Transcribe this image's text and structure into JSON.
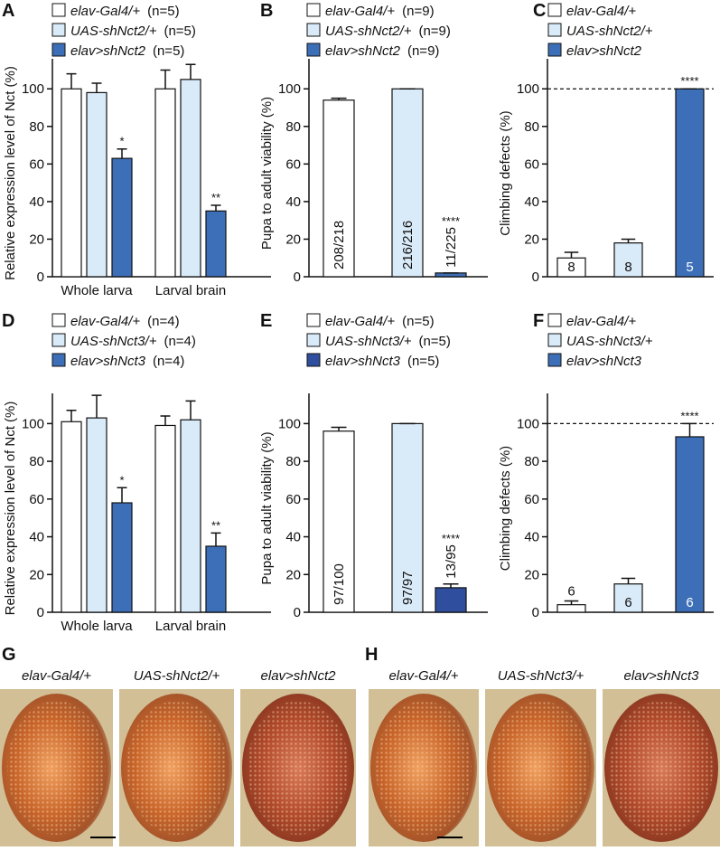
{
  "chart_data": [
    {
      "type": "bar",
      "panel": "A",
      "ylabel": "Relative expression level of Nct (%)",
      "categories": [
        "Whole larva",
        "Larval brain"
      ],
      "series": [
        {
          "name": "elav-Gal4/+",
          "n_label": "(n=5)",
          "color": "#ffffff",
          "values": [
            100,
            100
          ],
          "errors": [
            8,
            10
          ]
        },
        {
          "name": "UAS-shNct2/+",
          "n_label": "(n=5)",
          "color": "#d9eaf8",
          "values": [
            98,
            105
          ],
          "errors": [
            5,
            8
          ]
        },
        {
          "name": "elav>shNct2",
          "n_label": "(n=5)",
          "color": "#3d6fb8",
          "values": [
            63,
            35
          ],
          "errors": [
            5,
            3
          ],
          "significance": [
            "*",
            "**"
          ]
        }
      ],
      "ylim": [
        0,
        116
      ],
      "yticks": [
        0,
        20,
        40,
        60,
        80,
        100
      ]
    },
    {
      "type": "bar",
      "panel": "B",
      "ylabel": "Pupa to adult viability (%)",
      "categories": [
        null
      ],
      "series": [
        {
          "name": "elav-Gal4/+",
          "n_label": "(n=9)",
          "color": "#ffffff",
          "values": [
            94
          ],
          "errors": [
            1
          ],
          "bar_labels": [
            "208/218"
          ]
        },
        {
          "name": "UAS-shNct2/+",
          "n_label": "(n=9)",
          "color": "#d9eaf8",
          "values": [
            100
          ],
          "errors": [
            0
          ],
          "bar_labels": [
            "216/216"
          ]
        },
        {
          "name": "elav>shNct2",
          "n_label": "(n=9)",
          "color": "#3d6fb8",
          "values": [
            2
          ],
          "errors": [
            0
          ],
          "bar_labels": [
            "11/225"
          ],
          "significance": [
            "****"
          ]
        }
      ],
      "ylim": [
        0,
        116
      ],
      "yticks": [
        0,
        20,
        40,
        60,
        80,
        100
      ]
    },
    {
      "type": "bar",
      "panel": "C",
      "ylabel": "Climbing defects (%)",
      "categories": [
        null
      ],
      "series": [
        {
          "name": "elav-Gal4/+",
          "color": "#ffffff",
          "values": [
            10
          ],
          "errors": [
            3
          ],
          "bar_labels": [
            "8"
          ]
        },
        {
          "name": "UAS-shNct2/+",
          "color": "#d9eaf8",
          "values": [
            18
          ],
          "errors": [
            2
          ],
          "bar_labels": [
            "8"
          ]
        },
        {
          "name": "elav>shNct2",
          "color": "#3d6fb8",
          "values": [
            100
          ],
          "errors": [
            0
          ],
          "bar_labels": [
            "5"
          ],
          "significance": [
            "****"
          ]
        }
      ],
      "ylim": [
        0,
        116
      ],
      "yticks": [
        0,
        20,
        40,
        60,
        80,
        100
      ],
      "reference_line": 100
    },
    {
      "type": "bar",
      "panel": "D",
      "ylabel": "Relative expression level of Nct (%)",
      "categories": [
        "Whole larva",
        "Larval brain"
      ],
      "series": [
        {
          "name": "elav-Gal4/+",
          "n_label": "(n=4)",
          "color": "#ffffff",
          "values": [
            101,
            99
          ],
          "errors": [
            6,
            5
          ]
        },
        {
          "name": "UAS-shNct3/+",
          "n_label": "(n=4)",
          "color": "#d9eaf8",
          "values": [
            103,
            102
          ],
          "errors": [
            12,
            10
          ]
        },
        {
          "name": "elav>shNct3",
          "n_label": "(n=4)",
          "color": "#3d6fb8",
          "values": [
            58,
            35
          ],
          "errors": [
            8,
            7
          ],
          "significance": [
            "*",
            "**"
          ]
        }
      ],
      "ylim": [
        0,
        116
      ],
      "yticks": [
        0,
        20,
        40,
        60,
        80,
        100
      ]
    },
    {
      "type": "bar",
      "panel": "E",
      "ylabel": "Pupa to adult viability (%)",
      "categories": [
        null
      ],
      "series": [
        {
          "name": "elav-Gal4/+",
          "n_label": "(n=5)",
          "color": "#ffffff",
          "values": [
            96
          ],
          "errors": [
            2
          ],
          "bar_labels": [
            "97/100"
          ]
        },
        {
          "name": "UAS-shNct3/+",
          "n_label": "(n=5)",
          "color": "#d9eaf8",
          "values": [
            100
          ],
          "errors": [
            0
          ],
          "bar_labels": [
            "97/97"
          ]
        },
        {
          "name": "elav>shNct3",
          "n_label": "(n=5)",
          "color": "#2f4f9e",
          "values": [
            13
          ],
          "errors": [
            2
          ],
          "bar_labels": [
            "13/95"
          ],
          "significance": [
            "****"
          ]
        }
      ],
      "ylim": [
        0,
        116
      ],
      "yticks": [
        0,
        20,
        40,
        60,
        80,
        100
      ]
    },
    {
      "type": "bar",
      "panel": "F",
      "ylabel": "Climbing defects (%)",
      "categories": [
        null
      ],
      "series": [
        {
          "name": "elav-Gal4/+",
          "color": "#ffffff",
          "values": [
            4
          ],
          "errors": [
            2
          ],
          "bar_labels": [
            "6"
          ]
        },
        {
          "name": "UAS-shNct3/+",
          "color": "#d9eaf8",
          "values": [
            15
          ],
          "errors": [
            3
          ],
          "bar_labels": [
            "6"
          ]
        },
        {
          "name": "elav>shNct3",
          "color": "#3d6fb8",
          "values": [
            93
          ],
          "errors": [
            7
          ],
          "bar_labels": [
            "6"
          ],
          "significance": [
            "****"
          ]
        }
      ],
      "ylim": [
        0,
        116
      ],
      "yticks": [
        0,
        20,
        40,
        60,
        80,
        100
      ],
      "reference_line": 100
    }
  ],
  "photo_panels": [
    {
      "panel": "G",
      "captions": [
        "elav-Gal4/+",
        "UAS-shNct2/+",
        "elav>shNct2"
      ]
    },
    {
      "panel": "H",
      "captions": [
        "elav-Gal4/+",
        "UAS-shNct3/+",
        "elav>shNct3"
      ]
    }
  ]
}
